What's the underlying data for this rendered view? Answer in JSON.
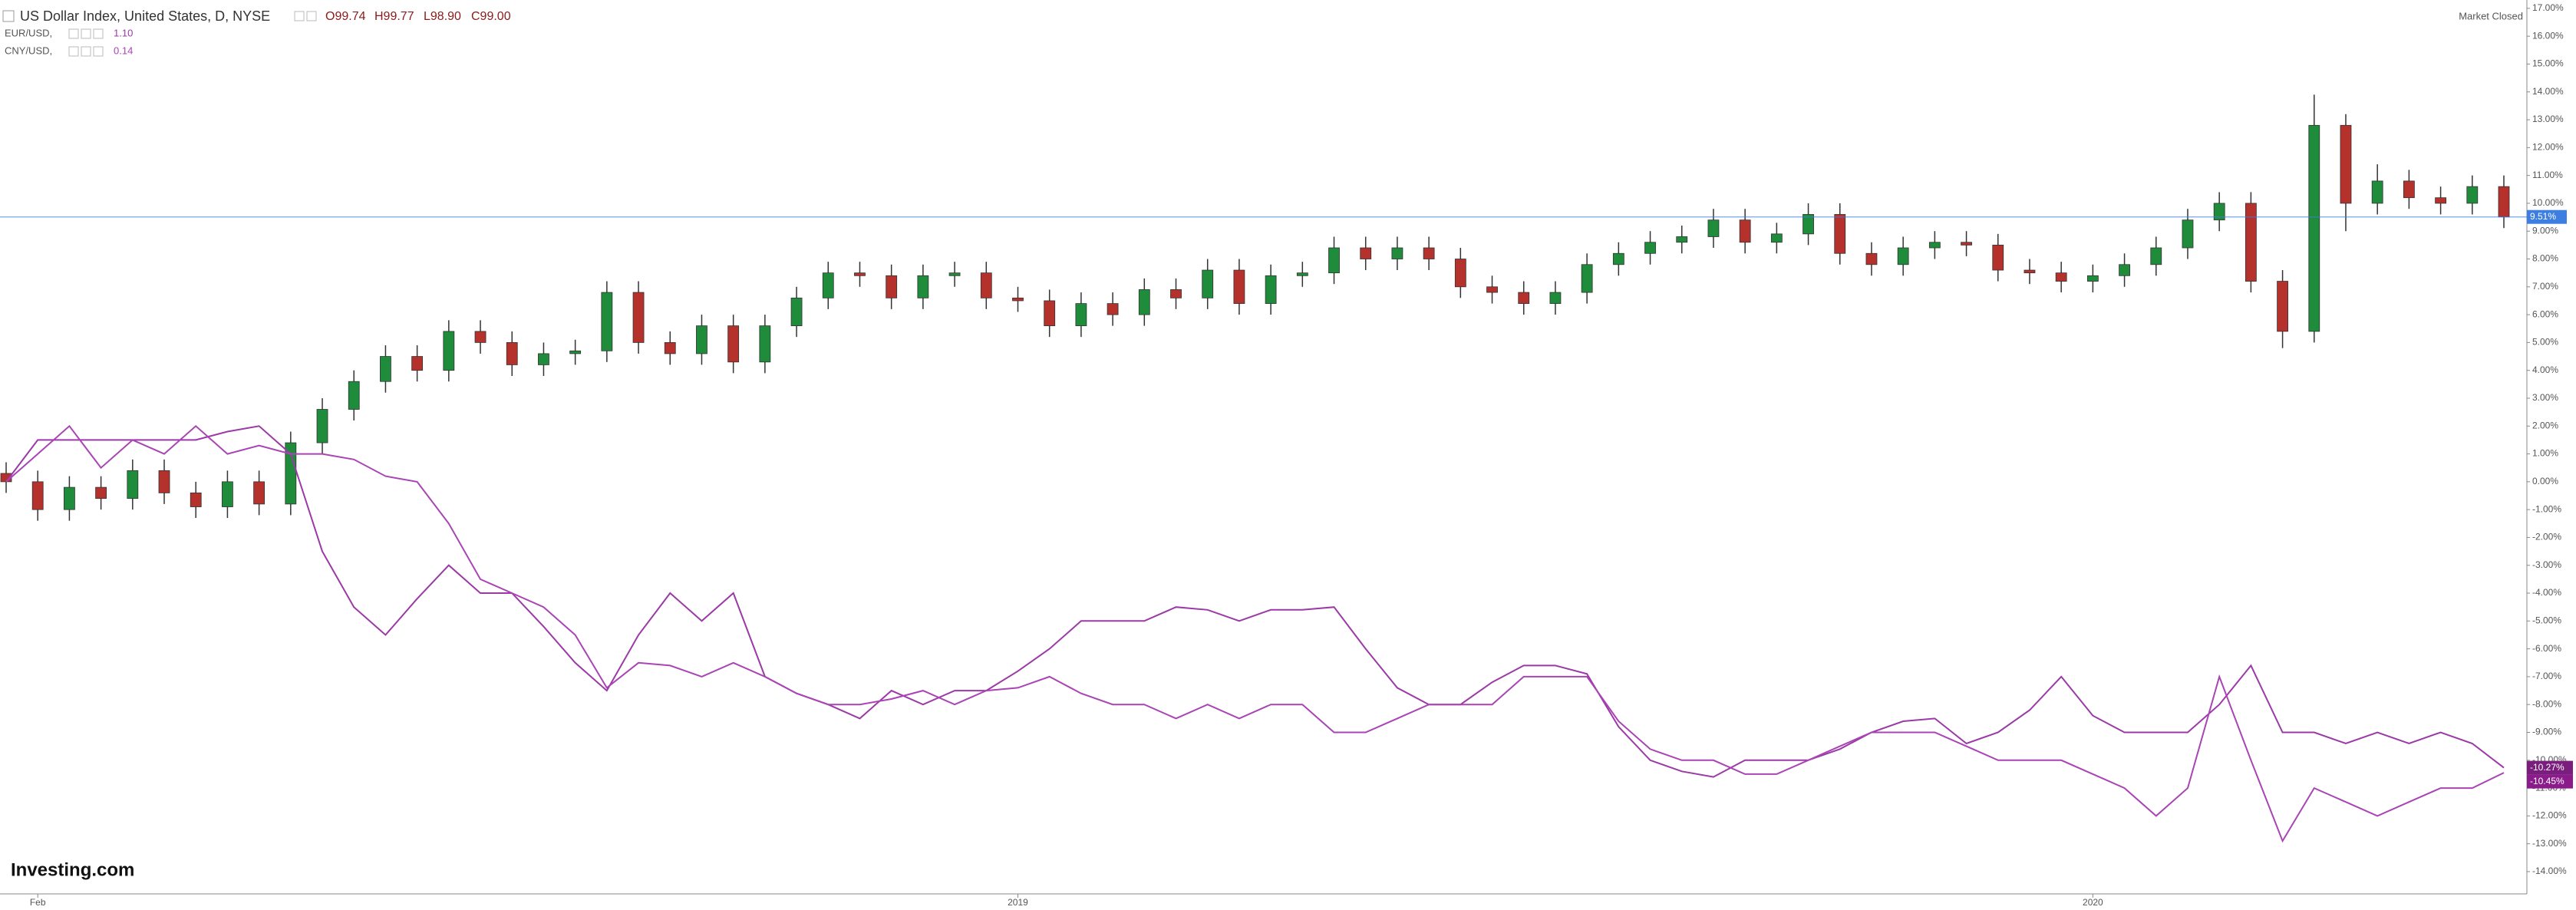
{
  "chart_data": {
    "type": "candlestick",
    "title": "US Dollar Index, United States, D, NYSE",
    "quote": [
      "O99.74",
      "H99.77",
      "L98.90",
      "C99.00"
    ],
    "status": "Market Closed",
    "logo": "Investing.com",
    "up_color": "#1e8c3a",
    "down_color": "#b5312c",
    "grid": false,
    "categories": [
      null,
      "Feb",
      null,
      null,
      null,
      null,
      null,
      null,
      null,
      null,
      null,
      null,
      null,
      null,
      null,
      null,
      null,
      null,
      null,
      null,
      null,
      null,
      null,
      null,
      null,
      null,
      null,
      null,
      null,
      null,
      null,
      null,
      "2019",
      null,
      null,
      null,
      null,
      null,
      null,
      null,
      null,
      null,
      null,
      null,
      null,
      null,
      null,
      null,
      null,
      null,
      null,
      null,
      null,
      null,
      null,
      null,
      null,
      null,
      null,
      null,
      null,
      null,
      null,
      null,
      null,
      null,
      "2020",
      null,
      null,
      null,
      null,
      null,
      null,
      null,
      null,
      null,
      null,
      null,
      null,
      null
    ],
    "open": [
      0.3,
      0.0,
      -1.0,
      -0.2,
      -0.6,
      0.4,
      -0.4,
      -0.9,
      0.0,
      -0.8,
      1.4,
      2.6,
      3.6,
      4.5,
      4.0,
      5.4,
      5.0,
      4.2,
      4.6,
      4.7,
      6.8,
      5.0,
      4.6,
      5.6,
      4.3,
      5.6,
      6.6,
      7.5,
      7.4,
      6.6,
      7.4,
      7.5,
      6.6,
      6.5,
      5.6,
      6.4,
      6.0,
      6.9,
      6.6,
      7.6,
      6.4,
      7.4,
      7.5,
      8.4,
      8.0,
      8.4,
      8.0,
      7.0,
      6.8,
      6.4,
      6.8,
      7.8,
      8.2,
      8.6,
      8.8,
      9.4,
      8.6,
      8.9,
      9.6,
      8.2,
      7.8,
      8.4,
      8.6,
      8.5,
      7.6,
      7.5,
      7.2,
      7.4,
      7.8,
      8.4,
      9.4,
      10.0,
      7.2,
      5.4,
      12.8,
      10.0,
      10.8,
      10.2,
      10.0,
      10.6
    ],
    "high": [
      0.7,
      0.4,
      0.2,
      0.2,
      0.8,
      0.8,
      0.0,
      0.4,
      0.4,
      1.8,
      3.0,
      4.0,
      4.9,
      4.9,
      5.8,
      5.8,
      5.4,
      5.0,
      5.1,
      7.2,
      7.2,
      5.4,
      6.0,
      6.0,
      6.0,
      7.0,
      7.9,
      7.9,
      7.8,
      7.8,
      7.9,
      7.9,
      7.0,
      6.9,
      6.8,
      6.8,
      7.3,
      7.3,
      8.0,
      8.0,
      7.8,
      7.9,
      8.8,
      8.8,
      8.8,
      8.8,
      8.4,
      7.4,
      7.2,
      7.2,
      8.2,
      8.6,
      9.0,
      9.2,
      9.8,
      9.8,
      9.3,
      10.0,
      10.0,
      8.6,
      8.8,
      9.0,
      9.0,
      8.9,
      8.0,
      7.9,
      7.8,
      8.2,
      8.8,
      9.8,
      10.4,
      10.4,
      7.6,
      13.9,
      13.2,
      11.4,
      11.2,
      10.6,
      11.0,
      11.0
    ],
    "low": [
      -0.4,
      -1.4,
      -1.4,
      -1.0,
      -1.0,
      -0.8,
      -1.3,
      -1.3,
      -1.2,
      -1.2,
      1.0,
      2.2,
      3.2,
      3.6,
      3.6,
      4.6,
      3.8,
      3.8,
      4.2,
      4.3,
      4.6,
      4.2,
      4.2,
      3.9,
      3.9,
      5.2,
      6.2,
      7.0,
      6.2,
      6.2,
      7.0,
      6.2,
      6.1,
      5.2,
      5.2,
      5.6,
      5.6,
      6.2,
      6.2,
      6.0,
      6.0,
      7.0,
      7.1,
      7.6,
      7.6,
      7.6,
      6.6,
      6.4,
      6.0,
      6.0,
      6.4,
      7.4,
      7.8,
      8.2,
      8.4,
      8.2,
      8.2,
      8.5,
      7.8,
      7.4,
      7.4,
      8.0,
      8.1,
      7.2,
      7.1,
      6.8,
      6.8,
      7.0,
      7.4,
      8.0,
      9.0,
      6.8,
      4.8,
      5.0,
      9.0,
      9.6,
      9.8,
      9.6,
      9.6,
      9.11
    ],
    "close": [
      0.0,
      -1.0,
      -0.2,
      -0.6,
      0.4,
      -0.4,
      -0.9,
      0.0,
      -0.8,
      1.4,
      2.6,
      3.6,
      4.5,
      4.0,
      5.4,
      5.0,
      4.2,
      4.6,
      4.7,
      6.8,
      5.0,
      4.6,
      5.6,
      4.3,
      5.6,
      6.6,
      7.5,
      7.4,
      6.6,
      7.4,
      7.5,
      6.6,
      6.5,
      5.6,
      6.4,
      6.0,
      6.9,
      6.6,
      7.6,
      6.4,
      7.4,
      7.5,
      8.4,
      8.0,
      8.4,
      8.0,
      7.0,
      6.8,
      6.4,
      6.8,
      7.8,
      8.2,
      8.6,
      8.8,
      9.4,
      8.6,
      8.9,
      9.6,
      8.2,
      7.8,
      8.4,
      8.6,
      8.5,
      7.6,
      7.5,
      7.2,
      7.4,
      7.8,
      8.4,
      9.4,
      10.0,
      7.2,
      5.4,
      12.8,
      10.0,
      10.8,
      10.2,
      10.0,
      10.6,
      9.51
    ],
    "price_line": {
      "value": 9.51,
      "label": "9.51%",
      "color": "#3d7fe0"
    },
    "series": [
      {
        "type": "line",
        "name": "EUR/USD,",
        "legend_value": "1.10",
        "color": "#9b3aa6",
        "badge_color": "#7a1e7e",
        "last_label": "-10.27%",
        "values": [
          0,
          1.5,
          1.5,
          1.5,
          1.5,
          1.5,
          1.5,
          1.8,
          2.0,
          1.0,
          -2.5,
          -4.5,
          -5.5,
          -4.2,
          -3.0,
          -4.0,
          -4.0,
          -5.2,
          -6.5,
          -7.5,
          -5.5,
          -4.0,
          -5.0,
          -4.0,
          -7.0,
          -7.6,
          -8.0,
          -8.5,
          -7.5,
          -8.0,
          -7.5,
          -7.5,
          -6.8,
          -6.0,
          -5.0,
          -5.0,
          -5.0,
          -4.5,
          -4.6,
          -5.0,
          -4.6,
          -4.6,
          -4.5,
          -6.0,
          -7.4,
          -8.0,
          -8.0,
          -7.2,
          -6.6,
          -6.6,
          -6.9,
          -8.8,
          -10.0,
          -10.4,
          -10.6,
          -10.0,
          -10.0,
          -10.0,
          -9.6,
          -9.0,
          -8.6,
          -8.5,
          -9.4,
          -9.0,
          -8.2,
          -7.0,
          -8.4,
          -9.0,
          -9.0,
          -9.0,
          -8.0,
          -6.6,
          -9.0,
          -9.0,
          -9.4,
          -9.0,
          -9.4,
          -9.0,
          -9.4,
          -10.27
        ]
      },
      {
        "type": "line",
        "name": "CNY/USD,",
        "legend_value": "0.14",
        "color": "#a944b4",
        "badge_color": "#8b1a8b",
        "last_label": "-10.45%",
        "values": [
          0,
          1.0,
          2.0,
          0.5,
          1.5,
          1.0,
          2.0,
          1.0,
          1.3,
          1.0,
          1.0,
          0.8,
          0.2,
          0.0,
          -1.5,
          -3.5,
          -4.0,
          -4.5,
          -5.5,
          -7.4,
          -6.5,
          -6.6,
          -7.0,
          -6.5,
          -7.0,
          -7.6,
          -8.0,
          -8.0,
          -7.8,
          -7.5,
          -8.0,
          -7.5,
          -7.4,
          -7.0,
          -7.6,
          -8.0,
          -8.0,
          -8.5,
          -8.0,
          -8.5,
          -8.0,
          -8.0,
          -9.0,
          -9.0,
          -8.5,
          -8.0,
          -8.0,
          -8.0,
          -7.0,
          -7.0,
          -7.0,
          -8.6,
          -9.6,
          -10.0,
          -10.0,
          -10.5,
          -10.5,
          -10.0,
          -9.5,
          -9.0,
          -9.0,
          -9.0,
          -9.5,
          -10.0,
          -10.0,
          -10.0,
          -10.5,
          -11.0,
          -12.0,
          -11.0,
          -7.0,
          -10.0,
          -12.9,
          -11.0,
          -11.5,
          -12.0,
          -11.5,
          -11.0,
          -11.0,
          -10.45
        ]
      }
    ],
    "ylim": [
      -14.8,
      17.3
    ],
    "yticks": [
      {
        "value": 17,
        "label": "17.00%"
      },
      {
        "value": 16,
        "label": "16.00%"
      },
      {
        "value": 15,
        "label": "15.00%"
      },
      {
        "value": 14,
        "label": "14.00%"
      },
      {
        "value": 13,
        "label": "13.00%"
      },
      {
        "value": 12,
        "label": "12.00%"
      },
      {
        "value": 11,
        "label": "11.00%"
      },
      {
        "value": 10,
        "label": "10.00%"
      },
      {
        "value": 9,
        "label": "9.00%"
      },
      {
        "value": 8,
        "label": "8.00%"
      },
      {
        "value": 7,
        "label": "7.00%"
      },
      {
        "value": 6,
        "label": "6.00%"
      },
      {
        "value": 5,
        "label": "5.00%"
      },
      {
        "value": 4,
        "label": "4.00%"
      },
      {
        "value": 3,
        "label": "3.00%"
      },
      {
        "value": 2,
        "label": "2.00%"
      },
      {
        "value": 1,
        "label": "1.00%"
      },
      {
        "value": 0,
        "label": "0.00%"
      },
      {
        "value": -1,
        "label": "-1.00%"
      },
      {
        "value": -2,
        "label": "-2.00%"
      },
      {
        "value": -3,
        "label": "-3.00%"
      },
      {
        "value": -4,
        "label": "-4.00%"
      },
      {
        "value": -5,
        "label": "-5.00%"
      },
      {
        "value": -6,
        "label": "-6.00%"
      },
      {
        "value": -7,
        "label": "-7.00%"
      },
      {
        "value": -8,
        "label": "-8.00%"
      },
      {
        "value": -9,
        "label": "-9.00%"
      },
      {
        "value": -10,
        "label": "-10.00%"
      },
      {
        "value": -11,
        "label": "-11.00%"
      },
      {
        "value": -12,
        "label": "-12.00%"
      },
      {
        "value": -13,
        "label": "-13.00%"
      },
      {
        "value": -14,
        "label": "-14.00%"
      }
    ]
  }
}
